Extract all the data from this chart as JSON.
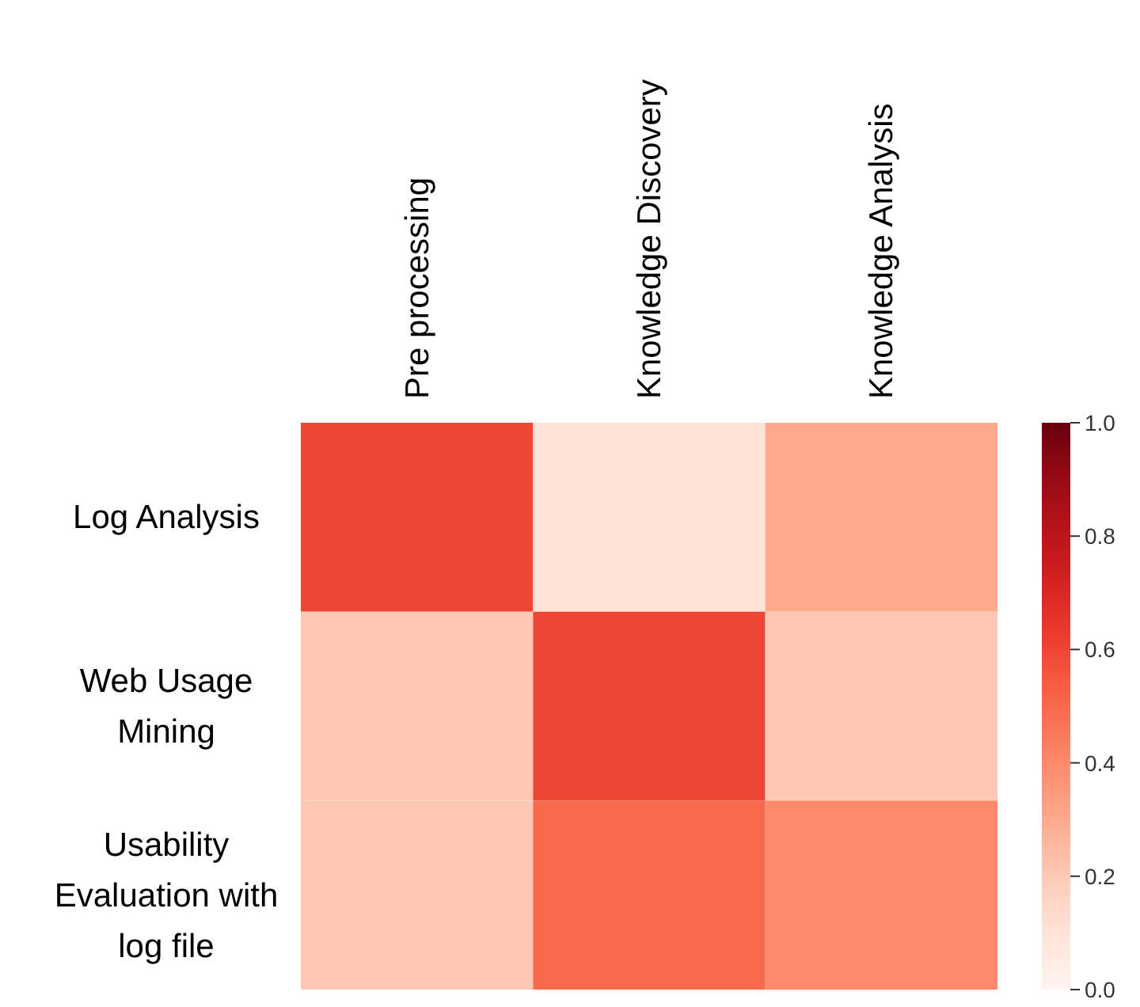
{
  "chart_data": {
    "type": "heatmap",
    "categories": [
      "Pre processing",
      "Knowledge Discovery",
      "Knowledge Analysis"
    ],
    "y_categories": [
      "Log Analysis",
      "Web Usage Mining",
      "Usability Evaluation with log file"
    ],
    "cells": [
      [
        0.6,
        0.1,
        0.3
      ],
      [
        0.2,
        0.6,
        0.2
      ],
      [
        0.2,
        0.5,
        0.4
      ]
    ],
    "clim": [
      0,
      1
    ],
    "cticks": [
      {
        "value": 0,
        "label": "0.0"
      },
      {
        "value": 0.2,
        "label": "0.2"
      },
      {
        "value": 0.4,
        "label": "0.4"
      },
      {
        "value": 0.6,
        "label": "0.6"
      },
      {
        "value": 0.8,
        "label": "0.8"
      },
      {
        "value": 1,
        "label": "1.0"
      }
    ]
  }
}
